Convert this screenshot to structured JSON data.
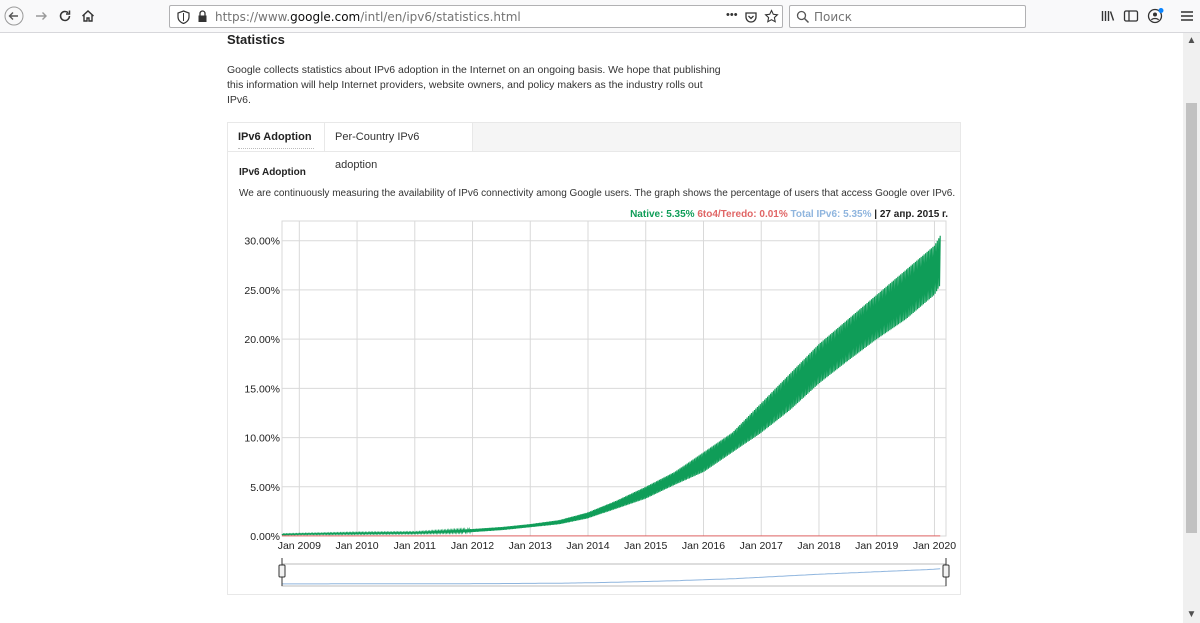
{
  "browser": {
    "url_prefix": "https://www.",
    "url_domain": "google.com",
    "url_path": "/intl/en/ipv6/statistics.html",
    "search_placeholder": "Поиск",
    "page_actions": "•••"
  },
  "page": {
    "title": "Statistics",
    "intro": "Google collects statistics about IPv6 adoption in the Internet on an ongoing basis. We hope that publishing this information will help Internet providers, website owners, and policy makers as the industry rolls out IPv6."
  },
  "tabs": [
    {
      "label": "IPv6 Adoption",
      "active": true
    },
    {
      "label": "Per-Country IPv6 adoption",
      "active": false
    }
  ],
  "section": {
    "title": "IPv6 Adoption",
    "description": "We are continuously measuring the availability of IPv6 connectivity among Google users. The graph shows the percentage of users that access Google over IPv6."
  },
  "legend": {
    "native": "Native: 5.35%",
    "teredo": "6to4/Teredo: 0.01%",
    "total": "Total IPv6: 5.35%",
    "date": " | 27 апр. 2015 г."
  },
  "colors": {
    "native": "#0f9d58",
    "teredo": "#e06666",
    "total": "#8fb5de",
    "grid": "#d9d9d9"
  },
  "chart_data": {
    "type": "area",
    "y_unit": "%",
    "ylim": [
      0,
      32
    ],
    "yticks": [
      0,
      5,
      10,
      15,
      20,
      25,
      30
    ],
    "ytick_labels": [
      "0.00%",
      "5.00%",
      "10.00%",
      "15.00%",
      "20.00%",
      "25.00%",
      "30.00%"
    ],
    "xlim": [
      2008.7,
      2020.2
    ],
    "xticks": [
      2009,
      2010,
      2011,
      2012,
      2013,
      2014,
      2015,
      2016,
      2017,
      2018,
      2019,
      2020
    ],
    "xtick_labels": [
      "Jan 2009",
      "Jan 2010",
      "Jan 2011",
      "Jan 2012",
      "Jan 2013",
      "Jan 2014",
      "Jan 2015",
      "Jan 2016",
      "Jan 2017",
      "Jan 2018",
      "Jan 2019",
      "Jan 2020"
    ],
    "series": [
      {
        "name": "Native",
        "color": "#0f9d58",
        "x": [
          2008.7,
          2009.0,
          2010.0,
          2011.0,
          2012.0,
          2012.5,
          2013.0,
          2013.5,
          2014.0,
          2014.5,
          2015.0,
          2015.5,
          2016.0,
          2016.5,
          2017.0,
          2017.5,
          2018.0,
          2018.5,
          2019.0,
          2019.5,
          2020.0,
          2020.1
        ],
        "low": [
          0.1,
          0.15,
          0.2,
          0.25,
          0.4,
          0.6,
          0.9,
          1.2,
          1.8,
          2.8,
          3.8,
          5.2,
          6.5,
          8.5,
          10.5,
          12.8,
          15.5,
          17.8,
          20.0,
          22.0,
          24.5,
          25.5
        ],
        "high": [
          0.2,
          0.25,
          0.35,
          0.4,
          0.7,
          0.9,
          1.2,
          1.6,
          2.4,
          3.6,
          5.0,
          6.5,
          8.5,
          10.5,
          13.5,
          16.5,
          19.5,
          22.0,
          24.5,
          27.0,
          29.5,
          30.5
        ]
      },
      {
        "name": "6to4/Teredo",
        "color": "#e06666",
        "x": [
          2008.7,
          2020.1
        ],
        "values": [
          0.01,
          0.01
        ]
      }
    ]
  }
}
